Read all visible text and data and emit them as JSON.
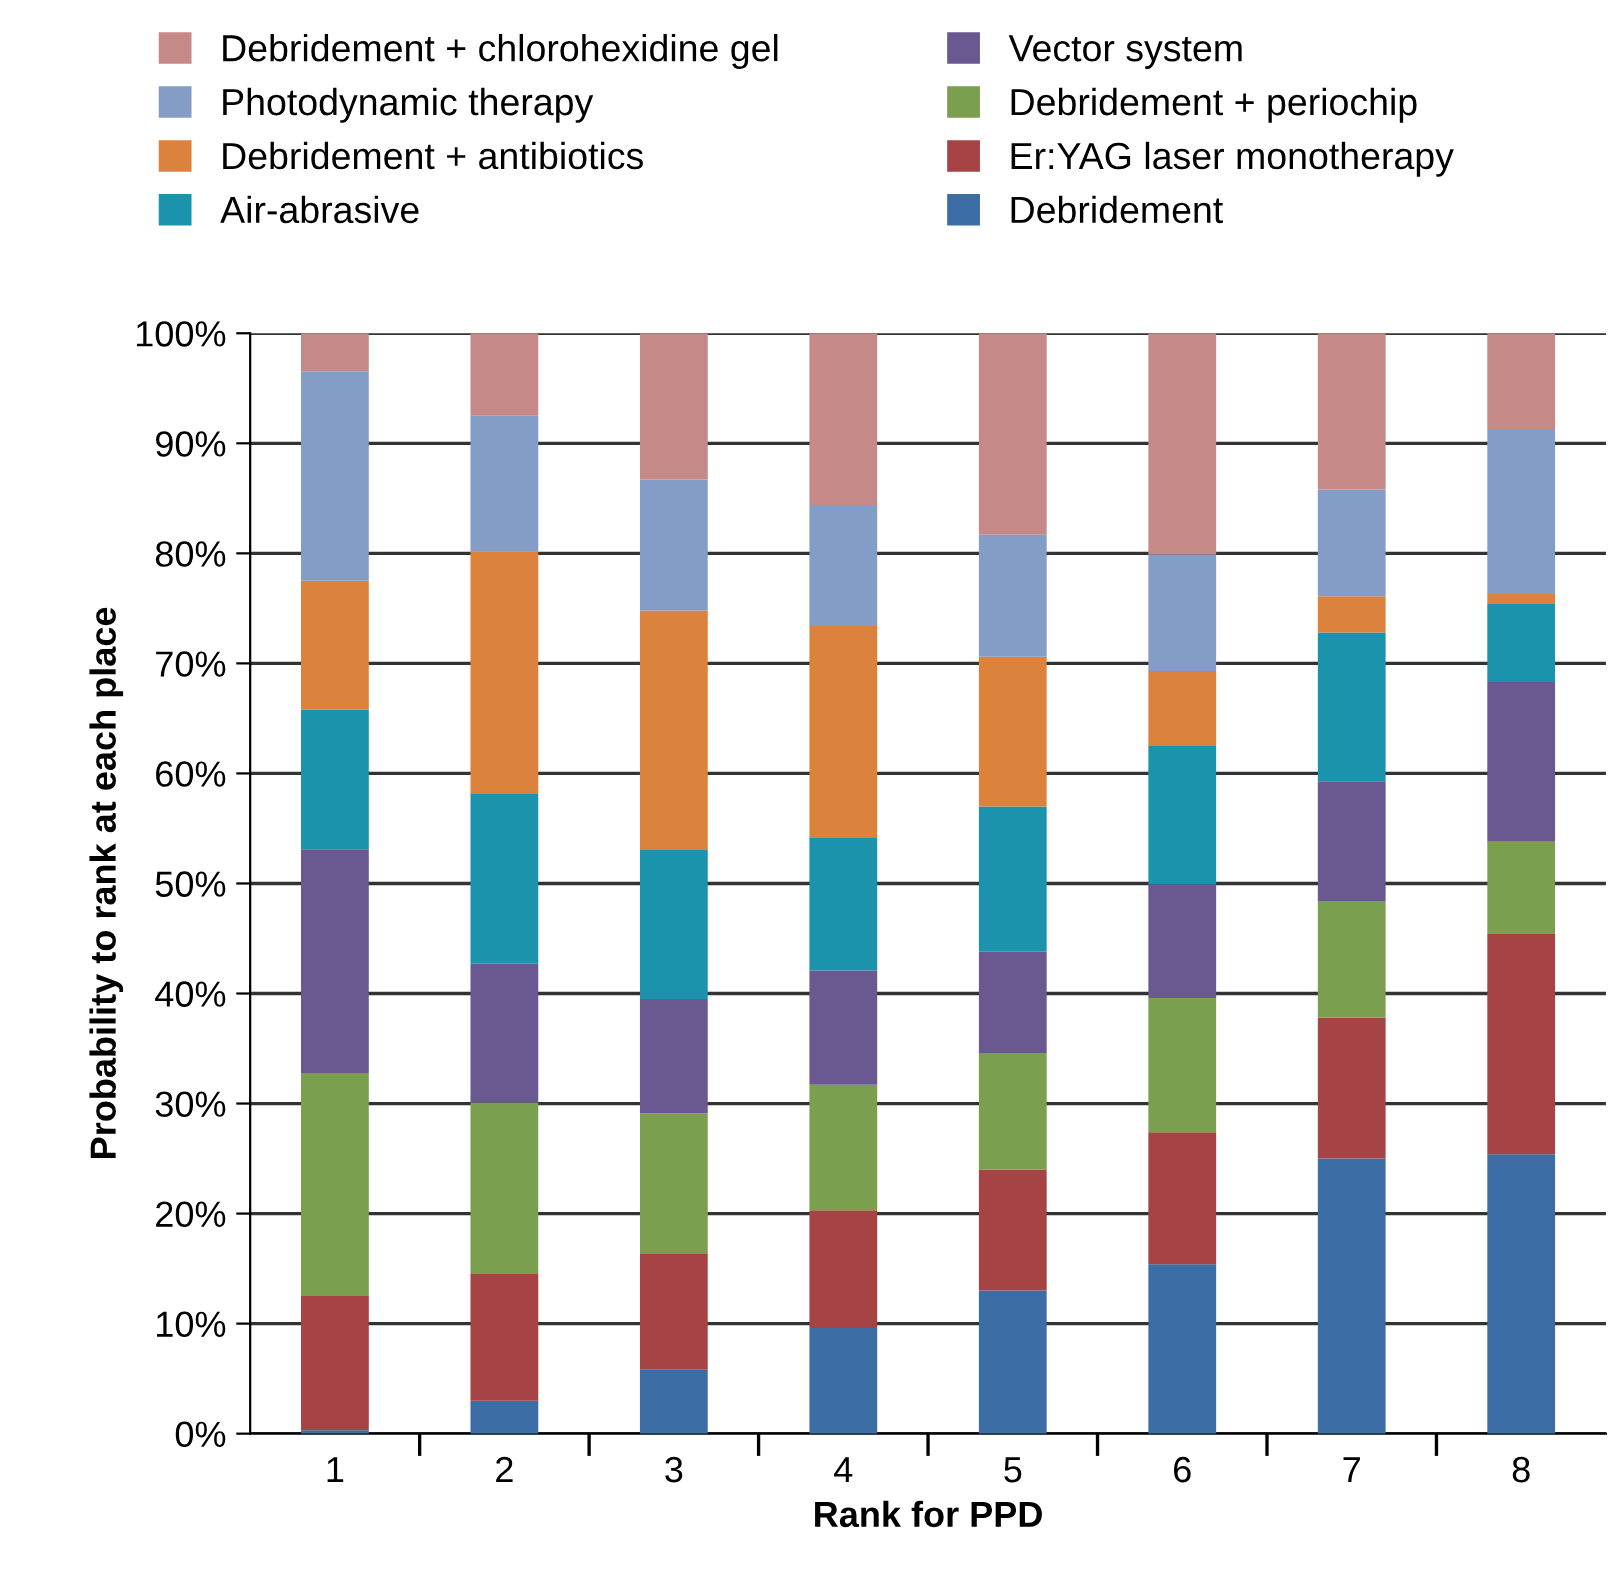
{
  "chart_data": {
    "type": "bar",
    "stacked": true,
    "xlabel": "Rank for PPD",
    "ylabel": "Probability to rank at each place",
    "categories": [
      "1",
      "2",
      "3",
      "4",
      "5",
      "6",
      "7",
      "8"
    ],
    "ylim": [
      0,
      100
    ],
    "yticks": [
      {
        "value": 0,
        "label": "0%"
      },
      {
        "value": 10,
        "label": "10%"
      },
      {
        "value": 20,
        "label": "20%"
      },
      {
        "value": 30,
        "label": "30%"
      },
      {
        "value": 40,
        "label": "40%"
      },
      {
        "value": 50,
        "label": "50%"
      },
      {
        "value": 60,
        "label": "60%"
      },
      {
        "value": 70,
        "label": "70%"
      },
      {
        "value": 80,
        "label": "80%"
      },
      {
        "value": 90,
        "label": "90%"
      },
      {
        "value": 100,
        "label": "100%"
      }
    ],
    "grid": "y",
    "legend": "top",
    "series": [
      {
        "name": "Debridement",
        "color": "#3c6ea5",
        "values": [
          0.3,
          3.0,
          5.8,
          9.6,
          13.0,
          15.4,
          25.0,
          25.4
        ]
      },
      {
        "name": "Er:YAG laser monotherapy",
        "color": "#a54345",
        "values": [
          12.2,
          11.5,
          10.6,
          10.7,
          11.0,
          12.0,
          12.8,
          20.0
        ]
      },
      {
        "name": "Debridement + periochip",
        "color": "#7aa04f",
        "values": [
          20.2,
          15.6,
          12.7,
          11.4,
          10.6,
          12.2,
          10.6,
          8.4
        ]
      },
      {
        "name": "Vector system",
        "color": "#6a5890",
        "values": [
          20.4,
          12.6,
          10.4,
          10.4,
          9.2,
          10.3,
          10.9,
          14.5
        ]
      },
      {
        "name": "Air-abrasive",
        "color": "#1c93ad",
        "values": [
          12.7,
          15.5,
          13.6,
          12.1,
          13.2,
          12.6,
          13.5,
          7.1
        ]
      },
      {
        "name": "Debridement + antibiotics",
        "color": "#db823c",
        "values": [
          11.7,
          22.0,
          21.7,
          19.2,
          13.6,
          6.8,
          3.3,
          0.9
        ]
      },
      {
        "name": "Photodynamic therapy",
        "color": "#849dc7",
        "values": [
          19.0,
          12.3,
          11.9,
          11.0,
          11.1,
          10.6,
          9.7,
          14.9
        ]
      },
      {
        "name": "Debridement + chlorohexidine gel",
        "color": "#c58987",
        "values": [
          3.5,
          7.5,
          13.3,
          15.6,
          18.3,
          20.1,
          14.2,
          8.8
        ]
      }
    ]
  }
}
